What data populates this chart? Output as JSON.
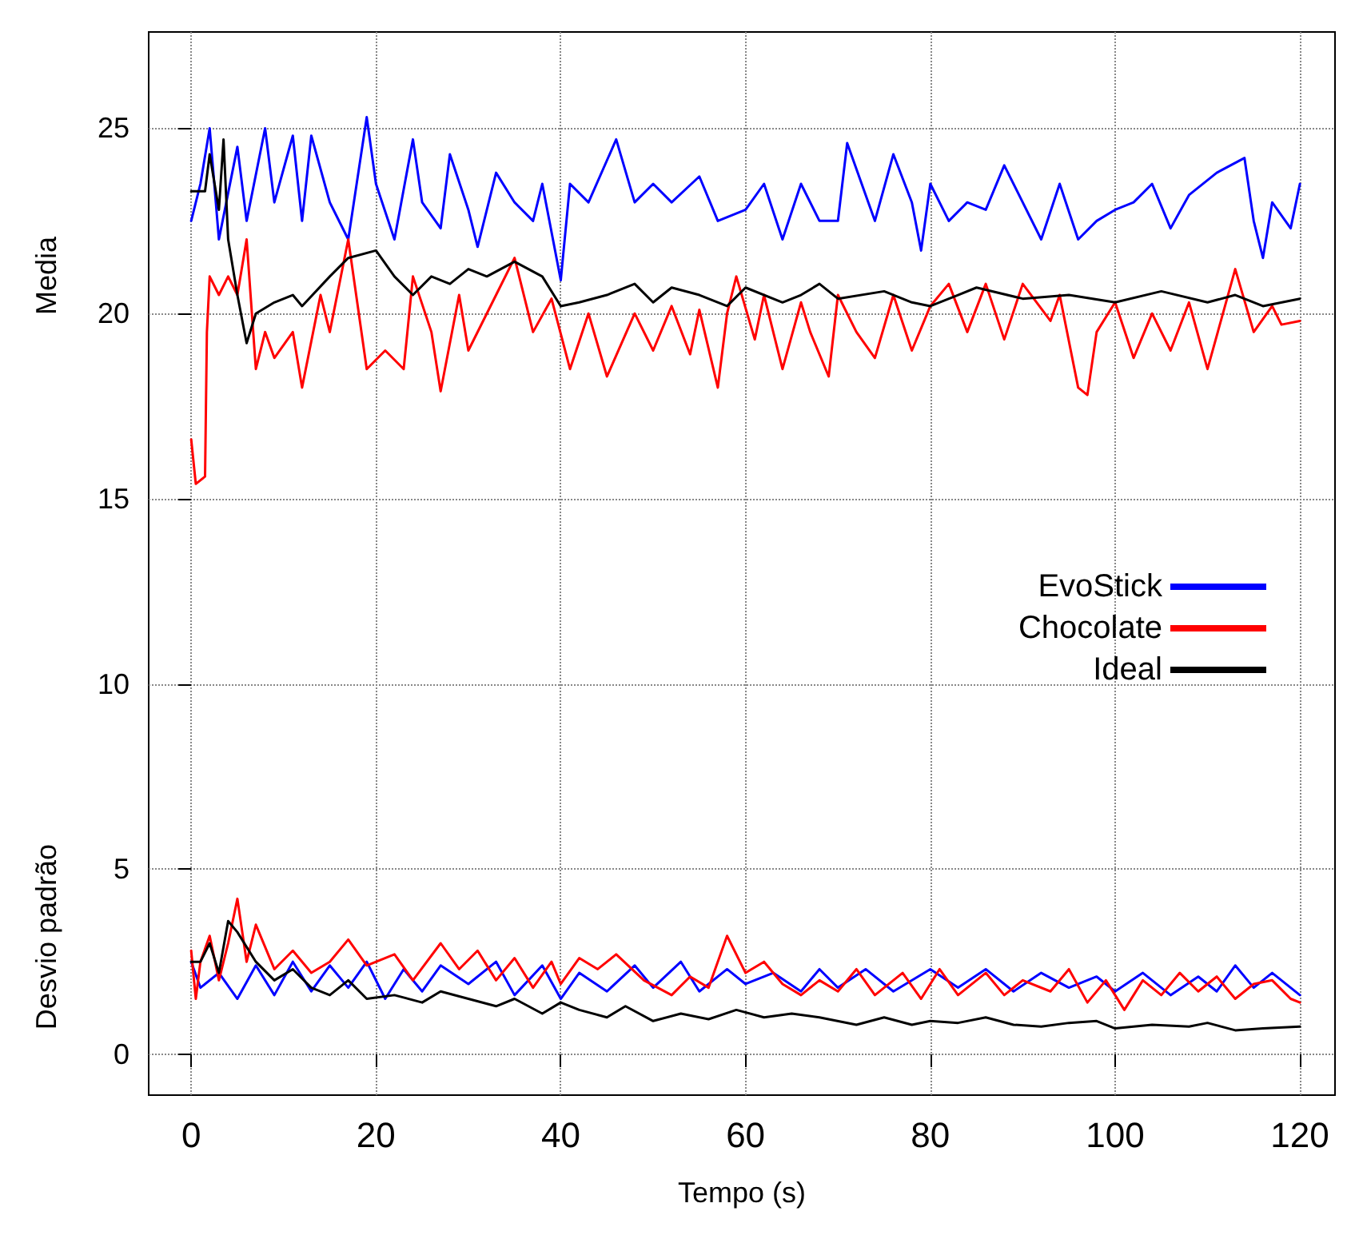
{
  "chart_data": {
    "type": "line",
    "xlabel": "Tempo (s)",
    "ylabel": "Media",
    "annotations": [
      "Desvio padrão"
    ],
    "xlim": [
      -4.6,
      123.8
    ],
    "ylim": [
      -1.1,
      27.6
    ],
    "xticks": [
      0,
      20,
      40,
      60,
      80,
      100,
      120
    ],
    "yticks": [
      0,
      5,
      10,
      15,
      20,
      25
    ],
    "grid": true,
    "legend": "right",
    "marker": "none",
    "line_style": "solid",
    "series": [
      {
        "name": "EvoStick",
        "color": "#0000ff",
        "x": [
          0,
          1,
          2,
          3,
          5,
          6,
          8,
          9,
          11,
          12,
          13,
          15,
          17,
          19,
          20,
          22,
          24,
          25,
          27,
          28,
          30,
          31,
          33,
          35,
          37,
          38,
          40,
          41,
          43,
          46,
          48,
          50,
          52,
          55,
          57,
          60,
          62,
          64,
          66,
          68,
          70,
          71,
          74,
          76,
          78,
          79,
          80,
          82,
          84,
          86,
          88,
          90,
          92,
          94,
          96,
          98,
          100,
          102,
          104,
          106,
          108,
          111,
          114,
          115,
          116,
          117,
          119,
          120
        ],
        "values": [
          22.5,
          23.5,
          25,
          22,
          24.5,
          22.5,
          25,
          23,
          24.8,
          22.5,
          24.8,
          23,
          22,
          25.3,
          23.5,
          22,
          24.7,
          23,
          22.3,
          24.3,
          22.8,
          21.8,
          23.8,
          23,
          22.5,
          23.5,
          20.9,
          23.5,
          23,
          24.7,
          23,
          23.5,
          23,
          23.7,
          22.5,
          22.8,
          23.5,
          22,
          23.5,
          22.5,
          22.5,
          24.6,
          22.5,
          24.3,
          23,
          21.7,
          23.5,
          22.5,
          23,
          22.8,
          24,
          23,
          22,
          23.5,
          22,
          22.5,
          22.8,
          23,
          23.5,
          22.3,
          23.2,
          23.8,
          24.2,
          22.5,
          21.5,
          23,
          22.3,
          23.5
        ]
      },
      {
        "name": "Chocolate",
        "color": "#ff0000",
        "x": [
          0,
          0.5,
          1.5,
          1.7,
          2,
          3,
          4,
          5,
          6,
          7,
          8,
          9,
          11,
          12,
          14,
          15,
          17,
          19,
          21,
          23,
          24,
          26,
          27,
          29,
          30,
          33,
          35,
          37,
          39,
          41,
          43,
          45,
          48,
          50,
          52,
          54,
          55,
          57,
          58,
          59,
          61,
          62,
          64,
          66,
          67,
          69,
          70,
          72,
          74,
          76,
          78,
          80,
          82,
          84,
          86,
          88,
          90,
          93,
          94,
          96,
          97,
          98,
          100,
          102,
          104,
          106,
          108,
          110,
          112,
          113,
          115,
          117,
          118,
          120
        ],
        "values": [
          16.6,
          15.4,
          15.6,
          19.5,
          21,
          20.5,
          21,
          20.5,
          22,
          18.5,
          19.5,
          18.8,
          19.5,
          18,
          20.5,
          19.5,
          22,
          18.5,
          19,
          18.5,
          21,
          19.5,
          17.9,
          20.5,
          19,
          20.5,
          21.5,
          19.5,
          20.4,
          18.5,
          20,
          18.3,
          20,
          19,
          20.2,
          18.9,
          20.1,
          18,
          20,
          21,
          19.3,
          20.5,
          18.5,
          20.3,
          19.5,
          18.3,
          20.5,
          19.5,
          18.8,
          20.5,
          19,
          20.2,
          20.8,
          19.5,
          20.8,
          19.3,
          20.8,
          19.8,
          20.5,
          18,
          17.8,
          19.5,
          20.3,
          18.8,
          20,
          19,
          20.3,
          18.5,
          20.3,
          21.2,
          19.5,
          20.2,
          19.7,
          19.8
        ]
      },
      {
        "name": "Ideal",
        "color": "#000000",
        "x": [
          0,
          1.5,
          2,
          3,
          3.5,
          4,
          5,
          6,
          7,
          9,
          11,
          12,
          15,
          17,
          20,
          22,
          24,
          26,
          28,
          30,
          32,
          35,
          38,
          40,
          42,
          45,
          48,
          50,
          52,
          55,
          58,
          60,
          64,
          66,
          68,
          70,
          75,
          78,
          80,
          83,
          85,
          90,
          95,
          100,
          105,
          110,
          113,
          116,
          120
        ],
        "values": [
          23.3,
          23.3,
          24.3,
          22.8,
          24.7,
          22,
          20.5,
          19.2,
          20,
          20.3,
          20.5,
          20.2,
          21,
          21.5,
          21.7,
          21,
          20.5,
          21,
          20.8,
          21.2,
          21,
          21.4,
          21,
          20.2,
          20.3,
          20.5,
          20.8,
          20.3,
          20.7,
          20.5,
          20.2,
          20.7,
          20.3,
          20.5,
          20.8,
          20.4,
          20.6,
          20.3,
          20.2,
          20.5,
          20.7,
          20.4,
          20.5,
          20.3,
          20.6,
          20.3,
          20.5,
          20.2,
          20.4
        ]
      },
      {
        "color": "#0000ff",
        "x": [
          0,
          1,
          3,
          5,
          7,
          9,
          11,
          13,
          15,
          17,
          19,
          21,
          23,
          25,
          27,
          30,
          33,
          35,
          38,
          40,
          42,
          45,
          48,
          50,
          53,
          55,
          58,
          60,
          63,
          66,
          68,
          70,
          73,
          76,
          80,
          83,
          86,
          89,
          92,
          95,
          98,
          100,
          103,
          106,
          109,
          111,
          113,
          115,
          117,
          120
        ],
        "values": [
          2.5,
          1.8,
          2.2,
          1.5,
          2.4,
          1.6,
          2.5,
          1.7,
          2.4,
          1.8,
          2.5,
          1.5,
          2.3,
          1.7,
          2.4,
          1.9,
          2.5,
          1.6,
          2.4,
          1.5,
          2.2,
          1.7,
          2.4,
          1.8,
          2.5,
          1.7,
          2.3,
          1.9,
          2.2,
          1.7,
          2.3,
          1.8,
          2.3,
          1.7,
          2.3,
          1.8,
          2.3,
          1.7,
          2.2,
          1.8,
          2.1,
          1.7,
          2.2,
          1.6,
          2.1,
          1.7,
          2.4,
          1.8,
          2.2,
          1.6
        ]
      },
      {
        "color": "#ff0000",
        "x": [
          0,
          0.5,
          1,
          2,
          3,
          4,
          5,
          6,
          7,
          9,
          11,
          13,
          15,
          17,
          19,
          22,
          24,
          27,
          29,
          31,
          33,
          35,
          37,
          39,
          40,
          42,
          44,
          46,
          49,
          52,
          54,
          56,
          58,
          60,
          62,
          64,
          66,
          68,
          70,
          72,
          74,
          77,
          79,
          81,
          83,
          86,
          88,
          90,
          93,
          95,
          97,
          99,
          101,
          103,
          105,
          107,
          109,
          111,
          113,
          115,
          117,
          119,
          120
        ],
        "values": [
          2.8,
          1.5,
          2.5,
          3.2,
          2,
          3,
          4.2,
          2.5,
          3.5,
          2.3,
          2.8,
          2.2,
          2.5,
          3.1,
          2.4,
          2.7,
          2,
          3,
          2.3,
          2.8,
          2,
          2.6,
          1.8,
          2.5,
          1.9,
          2.6,
          2.3,
          2.7,
          2,
          1.6,
          2.1,
          1.8,
          3.2,
          2.2,
          2.5,
          1.9,
          1.6,
          2,
          1.7,
          2.3,
          1.6,
          2.2,
          1.5,
          2.3,
          1.6,
          2.2,
          1.6,
          2,
          1.7,
          2.3,
          1.4,
          2,
          1.2,
          2,
          1.6,
          2.2,
          1.7,
          2.1,
          1.5,
          1.9,
          2,
          1.5,
          1.4
        ]
      },
      {
        "color": "#000000",
        "x": [
          0,
          1,
          2,
          3,
          4,
          5,
          7,
          9,
          11,
          13,
          15,
          17,
          19,
          22,
          25,
          27,
          30,
          33,
          35,
          38,
          40,
          42,
          45,
          47,
          50,
          53,
          56,
          59,
          62,
          65,
          68,
          72,
          75,
          78,
          80,
          83,
          86,
          89,
          92,
          95,
          98,
          100,
          104,
          108,
          110,
          113,
          116,
          120
        ],
        "values": [
          2.5,
          2.5,
          3,
          2.2,
          3.6,
          3.3,
          2.5,
          2,
          2.3,
          1.8,
          1.6,
          2,
          1.5,
          1.6,
          1.4,
          1.7,
          1.5,
          1.3,
          1.5,
          1.1,
          1.4,
          1.2,
          1,
          1.3,
          0.9,
          1.1,
          0.95,
          1.2,
          1,
          1.1,
          1,
          0.8,
          1,
          0.8,
          0.9,
          0.85,
          1,
          0.8,
          0.75,
          0.85,
          0.9,
          0.7,
          0.8,
          0.75,
          0.85,
          0.65,
          0.7,
          0.75
        ]
      }
    ]
  }
}
